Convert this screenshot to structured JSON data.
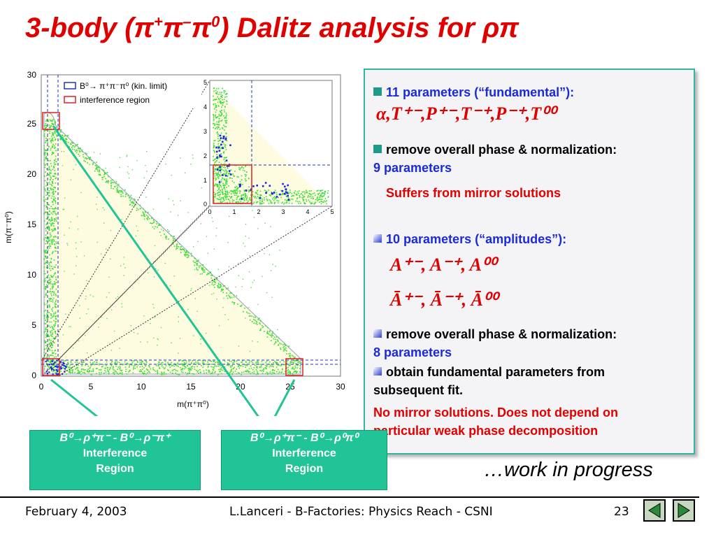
{
  "title": {
    "main": "3-body (",
    "pi": "π",
    "sup_plus": "+",
    "sup_minus": "–",
    "sup_zero": "0",
    "rest": ") Dalitz analysis for ",
    "rhopi": "ρπ"
  },
  "plot": {
    "y_label": "m(π⁻π⁰)",
    "x_label": "m(π⁺π⁰)",
    "y_ticks": [
      "30",
      "25",
      "20",
      "15",
      "10",
      "5",
      "0"
    ],
    "x_ticks": [
      "0",
      "5",
      "10",
      "15",
      "20",
      "25",
      "30"
    ],
    "inset_y_ticks": [
      "5",
      "4",
      "3",
      "2",
      "1",
      "0"
    ],
    "inset_x_ticks": [
      "0",
      "1",
      "2",
      "3",
      "4",
      "5"
    ],
    "legend_1": "B⁰→ π⁺π⁻π⁰ (kin. limit)",
    "legend_2": "interference region",
    "colors": {
      "green": "#33dd33",
      "blue": "#1a2ad8",
      "red": "#dd2222",
      "fill": "#fdfbe0"
    }
  },
  "panel": {
    "line1": "11 parameters (“fundamental”):",
    "formula1": "α,T⁺⁻,P⁺⁻,T⁻⁺,P⁻⁺,T⁰⁰",
    "line2": "remove overall phase & normalization:",
    "line3": "9 parameters",
    "line4": "Suffers from mirror solutions",
    "line5": "10 parameters (“amplitudes”):",
    "formula2": "A⁺⁻, A⁻⁺, A⁰⁰",
    "formula3": "Ā⁺⁻, Ā⁻⁺, Ā⁰⁰",
    "line6": "remove overall phase & normalization:",
    "line7": "8 parameters",
    "line8": "obtain fundamental parameters from",
    "line9": "subsequent fit.",
    "line10": "No mirror solutions. Does not depend on",
    "line11": "particular weak phase decomposition"
  },
  "boxes": [
    {
      "heading": "B⁰→ρ⁺π⁻ - B⁰→ρ⁻π⁺",
      "l1": "Interference",
      "l2": "Region"
    },
    {
      "heading": "B⁰→ρ⁺π⁻ - B⁰→ρ⁰π⁰",
      "l1": "Interference",
      "l2": "Region"
    }
  ],
  "wip": "…work in progress",
  "footer": {
    "date": "February 4, 2003",
    "center": "L.Lanceri - B-Factories: Physics Reach - CSNI",
    "page": "23"
  }
}
